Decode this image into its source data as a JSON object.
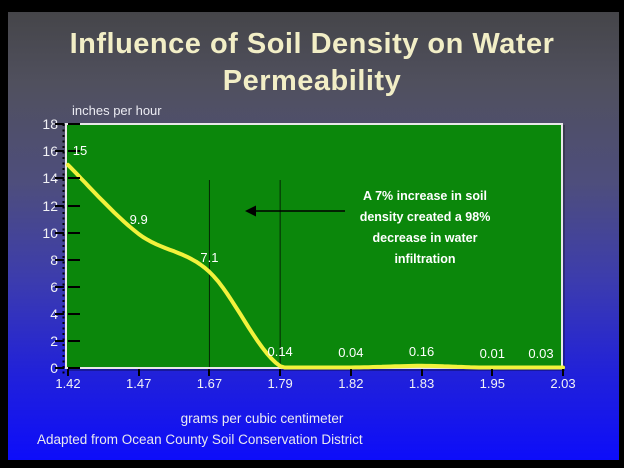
{
  "slide": {
    "title": "Influence of Soil Density on Water Permeability",
    "title_lines": [
      "Influence of Soil Density on Water",
      "Permeability"
    ],
    "footer": "Adapted from Ocean County Soil Conservation District"
  },
  "chart_data": {
    "type": "line",
    "categories": [
      "1.42",
      "1.47",
      "1.67",
      "1.79",
      "1.82",
      "1.83",
      "1.95",
      "2.03"
    ],
    "values": [
      15,
      9.9,
      7.1,
      0.14,
      0.04,
      0.16,
      0.01,
      0.03
    ],
    "data_labels": [
      "15",
      "9.9",
      "7.1",
      "0.14",
      "0.04",
      "0.16",
      "0.01",
      "0.03"
    ],
    "xlabel": "grams per cubic centimeter",
    "ylabel": "inches per hour",
    "ylim": [
      0,
      18
    ],
    "ytick_step": 2,
    "grid": false,
    "legend": "none",
    "drop_line_categories": [
      "1.67",
      "1.79"
    ],
    "annotation": {
      "text": "A 7% increase in soil density created a 98% decrease in water infiltration",
      "lines": [
        "A 7% increase in soil",
        "density created a 98%",
        "decrease in water",
        "infiltration"
      ]
    },
    "colors": {
      "line": "#f2f23c",
      "plot_background": "#0b870b",
      "plot_frame": "#e8e8e8",
      "axis_text": "#ffffff",
      "title_text": "#f2eec6",
      "background_top": "#46464a",
      "background_bottom": "#0d0dfa"
    }
  }
}
